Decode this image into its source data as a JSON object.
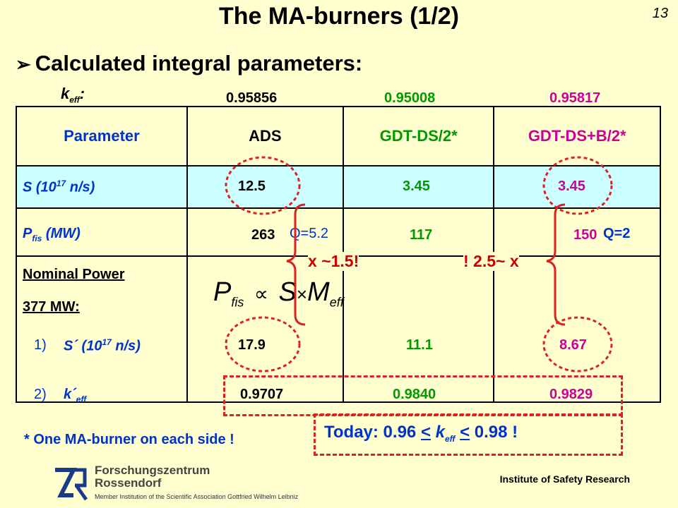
{
  "slide": {
    "title": "The MA-burners (1/2)",
    "page_number": "13",
    "bullet": "Calculated integral parameters:",
    "bullet_icon": "arrow-bullet-icon"
  },
  "keff": {
    "label": "k",
    "label_sub": "eff",
    "label_colon": ":",
    "ads": "0.95856",
    "gdt": "0.95008",
    "gdtb": "0.95817"
  },
  "table": {
    "headers": [
      "Parameter",
      "ADS",
      "GDT-DS/2*",
      "GDT-DS+B/2*"
    ],
    "row_s": {
      "label_pre": "S (10",
      "label_sup": "17",
      "label_post": " n/s)",
      "values": [
        "12.5",
        "3.45",
        "3.45"
      ]
    },
    "row_p": {
      "label_pre": "P",
      "label_sub": "fis",
      "label_post": " (MW)",
      "values": [
        "263",
        "117",
        "150"
      ],
      "q_ads": "Q=5.2",
      "q_gdtb": "Q=2"
    },
    "row_nominal": {
      "label_line1": "Nominal Power",
      "label_line2": "377 MW:",
      "item1_num": "1)",
      "item1_pre": "S´ (10",
      "item1_sup": "17",
      "item1_post": " n/s)",
      "item1_values": [
        "17.9",
        "11.1",
        "8.67"
      ],
      "item2_num": "2)",
      "item2_pre": "k´",
      "item2_sub": "eff",
      "item2_values": [
        "0.9707",
        "0.9840",
        "0.9829"
      ]
    }
  },
  "formula": {
    "p": "P",
    "p_sub": "fis",
    "prop": "∝",
    "s": "S",
    "times": "×",
    "m": "M",
    "m_sub": "eff"
  },
  "annotations": {
    "factor_ads": "x ~1.5!",
    "factor_gdtb": "! 2.5~ x"
  },
  "footnote": "* One MA-burner on each side !",
  "today": {
    "prefix": "Today:  0.96 ",
    "lt1": "<",
    "k": " k",
    "k_sub": "eff",
    "lt2": "<",
    "suffix": " 0.98  !"
  },
  "footer": {
    "org_line1": "Forschungszentrum",
    "org_line2": "Rossendorf",
    "member": "Member Institution of the Scientific Association Gottfried Wilhelm Leibniz",
    "institute": "Institute of Safety Research",
    "logo_icon": "fzr-logo-icon"
  },
  "colors": {
    "background": "#ffffd0",
    "highlight_row": "#ccffff",
    "green": "#009900",
    "pink": "#cc0099",
    "blue": "#0033cc",
    "red": "#cc0000"
  }
}
